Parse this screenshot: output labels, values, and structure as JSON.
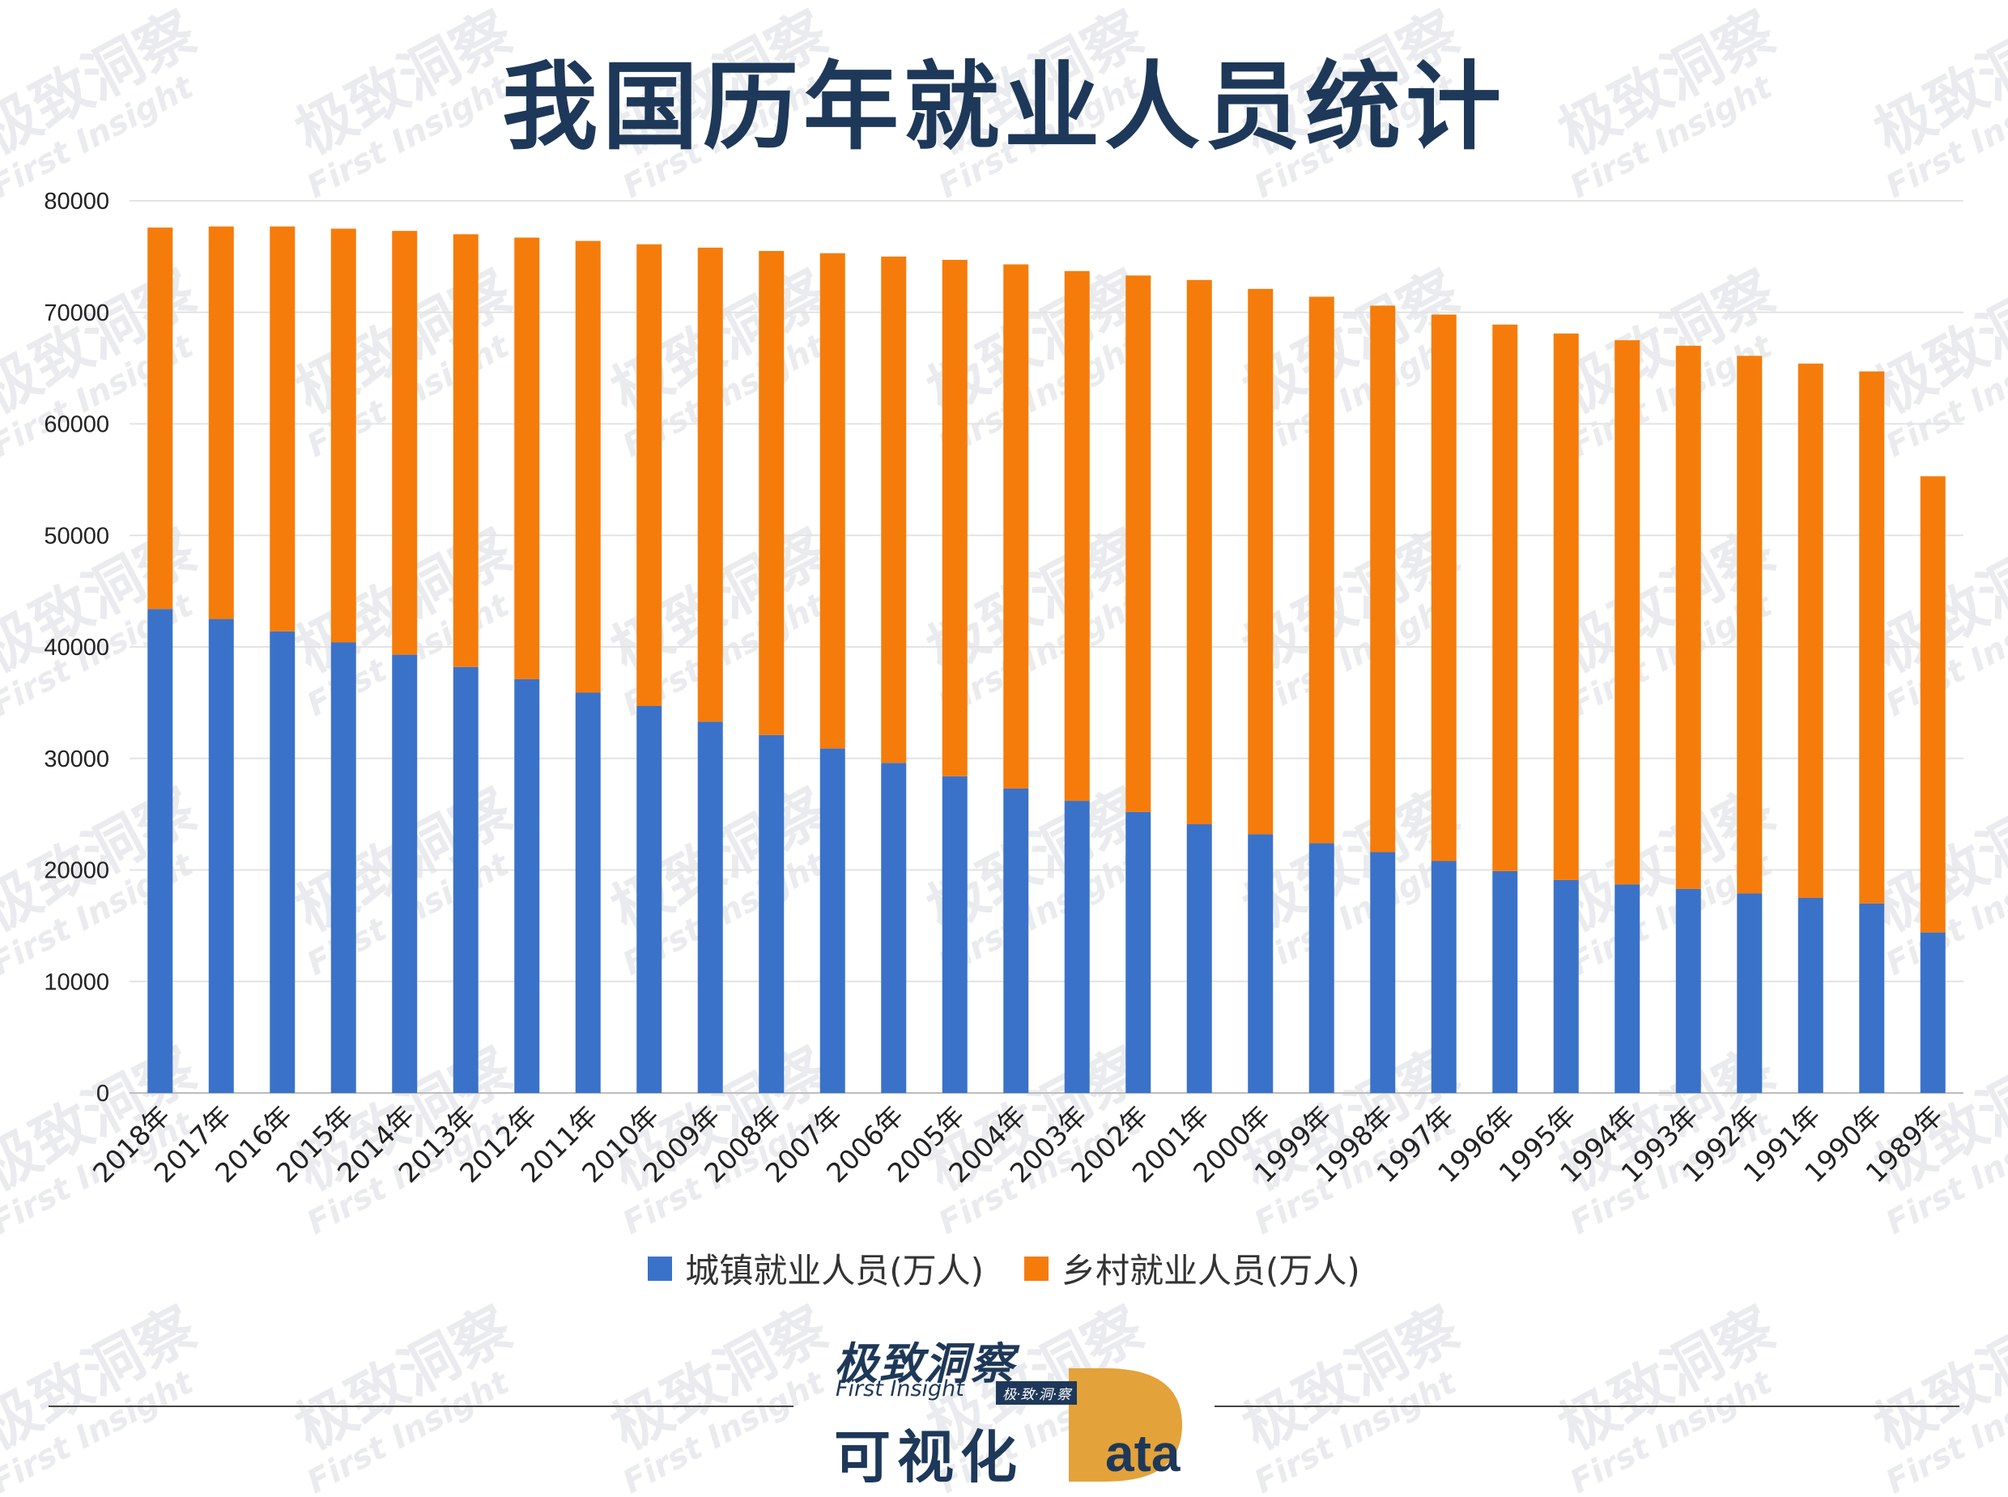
{
  "title": "我国历年就业人员统计",
  "watermark": {
    "cn": "极致洞察",
    "en": "First Insight"
  },
  "chart_data": {
    "type": "bar",
    "stacked": true,
    "categories": [
      "2018年",
      "2017年",
      "2016年",
      "2015年",
      "2014年",
      "2013年",
      "2012年",
      "2011年",
      "2010年",
      "2009年",
      "2008年",
      "2007年",
      "2006年",
      "2005年",
      "2004年",
      "2003年",
      "2002年",
      "2001年",
      "2000年",
      "1999年",
      "1998年",
      "1997年",
      "1996年",
      "1995年",
      "1994年",
      "1993年",
      "1992年",
      "1991年",
      "1990年",
      "1989年"
    ],
    "series": [
      {
        "name": "城镇就业人员(万人)",
        "color": "#3a72c9",
        "values": [
          43400,
          42500,
          41400,
          40400,
          39300,
          38200,
          37100,
          35900,
          34700,
          33300,
          32100,
          30900,
          29600,
          28400,
          27300,
          26200,
          25200,
          24100,
          23200,
          22400,
          21600,
          20800,
          19900,
          19100,
          18700,
          18300,
          17900,
          17500,
          17000,
          14400
        ]
      },
      {
        "name": "乡村就业人员(万人)",
        "color": "#f57c0a",
        "values": [
          34200,
          35200,
          36300,
          37100,
          38000,
          38800,
          39600,
          40500,
          41400,
          42500,
          43400,
          44400,
          45400,
          46300,
          47000,
          47500,
          48100,
          48800,
          48900,
          49000,
          49000,
          49000,
          49000,
          49000,
          48800,
          48700,
          48200,
          47900,
          47700,
          40900
        ]
      }
    ],
    "ylim": [
      0,
      80000
    ],
    "yticks": [
      0,
      10000,
      20000,
      30000,
      40000,
      50000,
      60000,
      70000,
      80000
    ],
    "grid": true,
    "legend_position": "bottom"
  },
  "logo": {
    "cn": "极致洞察",
    "en": "First Insight",
    "sub": "极·致·洞·察",
    "viz": "可视化",
    "data_tail": "ata"
  }
}
